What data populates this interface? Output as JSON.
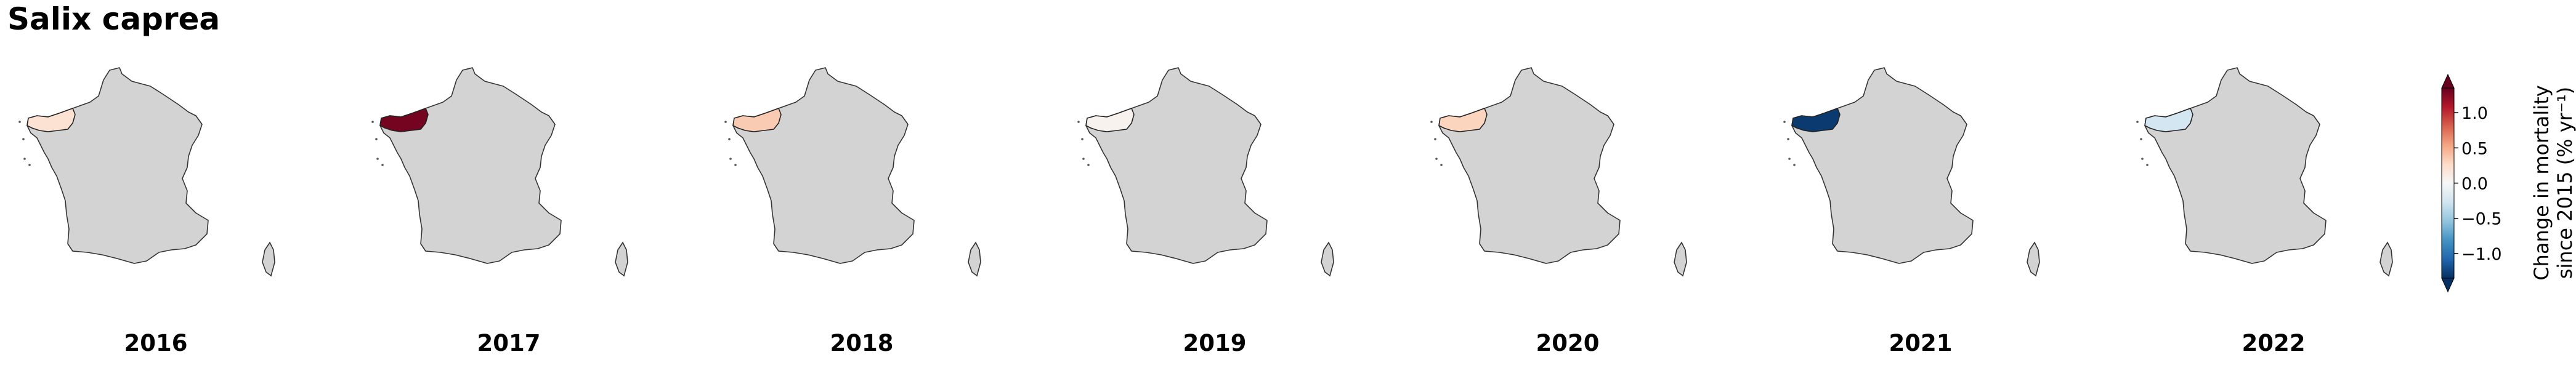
{
  "title": "Salix caprea",
  "chart_data": {
    "type": "choropleth-map",
    "title": "Salix caprea",
    "panels": [
      {
        "year": "2016",
        "region": "Bretagne",
        "value": 0.2
      },
      {
        "year": "2017",
        "region": "Bretagne",
        "value": 1.3
      },
      {
        "year": "2018",
        "region": "Bretagne",
        "value": 0.35
      },
      {
        "year": "2019",
        "region": "Bretagne",
        "value": 0.05
      },
      {
        "year": "2020",
        "region": "Bretagne",
        "value": 0.3
      },
      {
        "year": "2021",
        "region": "Bretagne",
        "value": -1.3
      },
      {
        "year": "2022",
        "region": "Bretagne",
        "value": -0.25
      }
    ],
    "no_data_color": "#d3d3d3",
    "colorbar": {
      "label_line1": "Change in mortality",
      "label_line2": "since 2015 (% yr⁻¹)",
      "vmin": -1.35,
      "vmax": 1.35,
      "colormap": "RdBu_r",
      "extend": "both",
      "ticks": [
        {
          "value": 1.0,
          "label": "1.0"
        },
        {
          "value": 0.5,
          "label": "0.5"
        },
        {
          "value": 0.0,
          "label": "0.0"
        },
        {
          "value": -0.5,
          "label": "−0.5"
        },
        {
          "value": -1.0,
          "label": "−1.0"
        }
      ]
    }
  }
}
